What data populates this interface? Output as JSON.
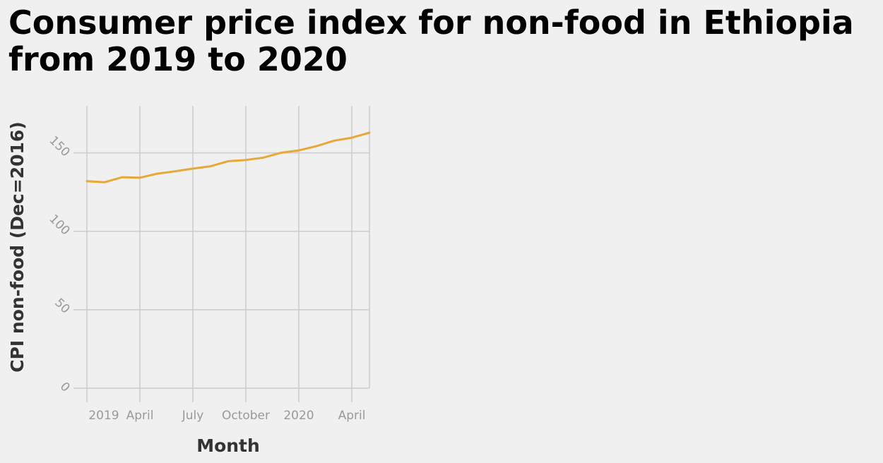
{
  "chart_data": {
    "type": "line",
    "title": "Consumer price index for non-food in Ethiopia from 2019 to 2020",
    "xlabel": "Month",
    "ylabel": "CPI non-food (Dec=2016)",
    "x": [
      "2019-01",
      "2019-02",
      "2019-03",
      "2019-04",
      "2019-05",
      "2019-06",
      "2019-07",
      "2019-08",
      "2019-09",
      "2019-10",
      "2019-11",
      "2019-12",
      "2020-01",
      "2020-02",
      "2020-03",
      "2020-04",
      "2020-05"
    ],
    "x_ticks": [
      {
        "x": "2019-01",
        "label": "2019"
      },
      {
        "x": "2019-04",
        "label": "April"
      },
      {
        "x": "2019-07",
        "label": "July"
      },
      {
        "x": "2019-10",
        "label": "October"
      },
      {
        "x": "2020-01",
        "label": "2020"
      },
      {
        "x": "2020-04",
        "label": "April"
      }
    ],
    "y_ticks": [
      0,
      50,
      100,
      150
    ],
    "ylim": [
      0,
      180
    ],
    "grid": true,
    "line_color": "#e8a838",
    "series": [
      {
        "values": [
          132,
          131.3,
          134.5,
          134.2,
          136.8,
          138.3,
          140,
          141.5,
          144.7,
          145.5,
          147,
          150.1,
          151.6,
          154.3,
          157.8,
          159.7,
          162.9
        ]
      }
    ]
  }
}
